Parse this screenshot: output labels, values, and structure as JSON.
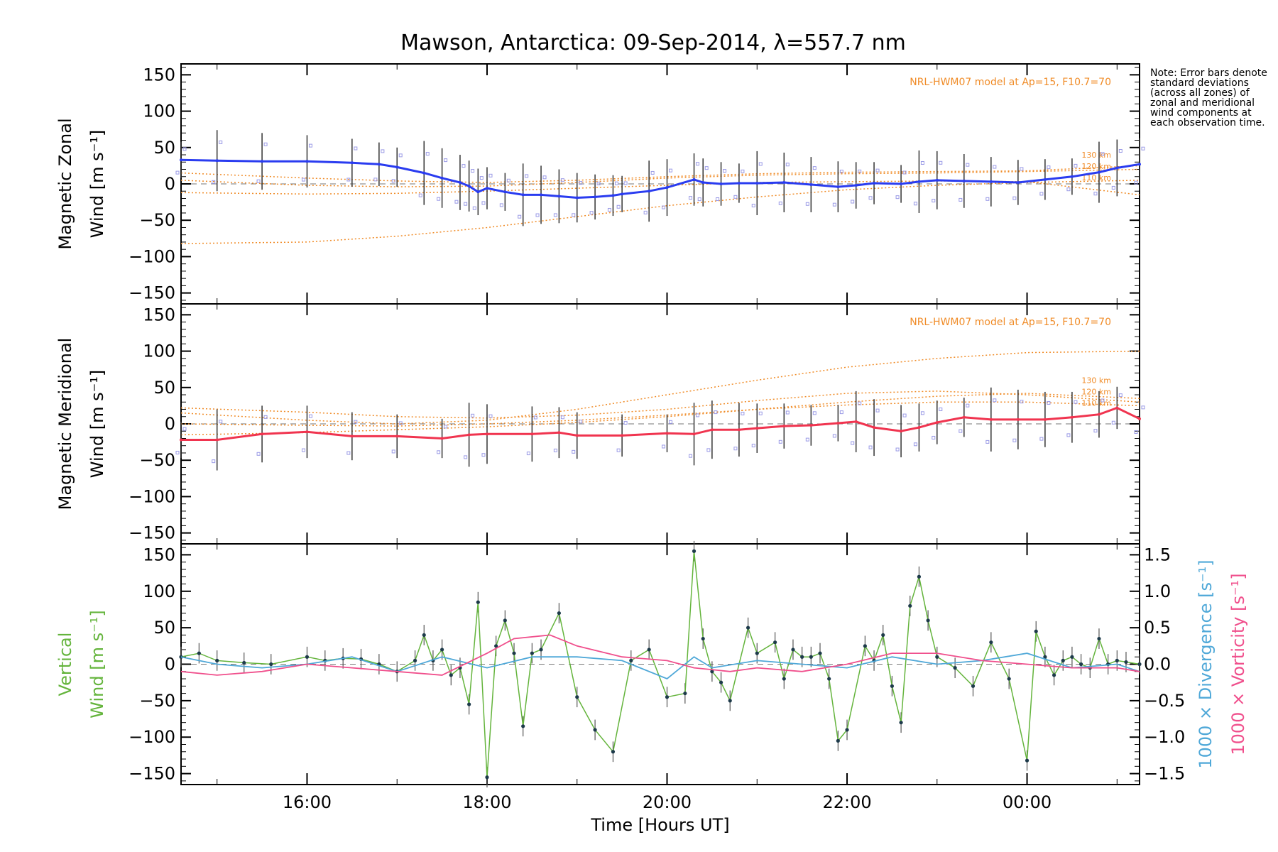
{
  "note": "Note: Error bars denote standard deviations (across all zones) of zonal and meridional wind components at each observation time.",
  "colors": {
    "zonal": "#2a3cf0",
    "meridional": "#f0344f",
    "vertical": "#64b43c",
    "divergence": "#4fa8d8",
    "vorticity": "#f04f8c",
    "model": "#f08c28",
    "zone_points": "#9a9ae6"
  },
  "chart_data": {
    "type": "line",
    "title": "Mawson, Antarctica: 09-Sep-2014, λ=557.7 nm",
    "xlabel": "Time [Hours UT]",
    "x_ticks": [
      "16:00",
      "18:00",
      "20:00",
      "22:00",
      "00:00"
    ],
    "x_tick_hours": [
      16,
      18,
      20,
      22,
      24
    ],
    "xlim_hours": [
      14.6,
      25.25
    ],
    "panels": [
      {
        "name": "zonal",
        "ylabel_top": "Magnetic Zonal",
        "ylabel_bottom": "Wind [m s⁻¹]",
        "ylim": [
          -165,
          165
        ],
        "y_ticks": [
          "150",
          "100",
          "50",
          "0",
          "−50",
          "−100",
          "−150"
        ],
        "model_label": "NRL-HWM07 model at Ap=15, F10.7=70",
        "model_altitude_labels": [
          "130 km",
          "120 km",
          "110 km"
        ],
        "series": [
          {
            "name": "zonal",
            "x": [
              14.6,
              15.0,
              15.5,
              16.0,
              16.5,
              16.8,
              17.0,
              17.3,
              17.5,
              17.7,
              17.8,
              17.9,
              18.0,
              18.2,
              18.4,
              18.6,
              18.8,
              19.0,
              19.2,
              19.4,
              19.5,
              19.8,
              20.0,
              20.3,
              20.4,
              20.6,
              20.8,
              21.0,
              21.3,
              21.6,
              21.9,
              22.1,
              22.3,
              22.6,
              22.8,
              23.0,
              23.3,
              23.6,
              23.9,
              24.2,
              24.5,
              24.8,
              25.0,
              25.25
            ],
            "y": [
              33,
              32,
              31,
              31,
              29,
              27,
              23,
              15,
              8,
              2,
              -3,
              -11,
              -6,
              -11,
              -15,
              -15,
              -17,
              -19,
              -18,
              -16,
              -14,
              -10,
              -5,
              6,
              2,
              0,
              1,
              1,
              2,
              -1,
              -4,
              -2,
              1,
              0,
              3,
              5,
              4,
              3,
              2,
              6,
              10,
              16,
              22,
              27
            ]
          }
        ],
        "model": [
          {
            "name": "model 1",
            "x": [
              14.6,
              16,
              17,
              18,
              19,
              20,
              21,
              22,
              23,
              24,
              25.25
            ],
            "y": [
              -82,
              -80,
              -72,
              -60,
              -45,
              -30,
              -18,
              -8,
              -2,
              2,
              5
            ]
          },
          {
            "name": "model 2",
            "x": [
              14.6,
              16,
              17,
              18,
              19,
              20,
              21,
              22,
              23,
              24,
              25.25
            ],
            "y": [
              -12,
              -14,
              -13,
              -10,
              -6,
              -2,
              2,
              3,
              4,
              3,
              -15
            ]
          },
          {
            "name": "model 3",
            "x": [
              14.6,
              16,
              17,
              18,
              19,
              20,
              21,
              22,
              23,
              24,
              25.25
            ],
            "y": [
              15,
              8,
              4,
              2,
              5,
              10,
              14,
              16,
              17,
              18,
              25
            ]
          },
          {
            "name": "model 4",
            "x": [
              14.6,
              16,
              17,
              18,
              19,
              20,
              21,
              22,
              23,
              24,
              25.25
            ],
            "y": [
              5,
              -2,
              -4,
              -3,
              2,
              8,
              12,
              14,
              15,
              17,
              20
            ]
          }
        ]
      },
      {
        "name": "meridional",
        "ylabel_top": "Magnetic Meridional",
        "ylabel_bottom": "Wind [m s⁻¹]",
        "ylim": [
          -165,
          165
        ],
        "y_ticks": [
          "150",
          "100",
          "50",
          "0",
          "−50",
          "−100",
          "−150"
        ],
        "model_label": "NRL-HWM07 model at Ap=15, F10.7=70",
        "model_altitude_labels": [
          "130 km",
          "120 km",
          "110 km"
        ],
        "series": [
          {
            "name": "meridional",
            "x": [
              14.6,
              15.0,
              15.5,
              16.0,
              16.5,
              17.0,
              17.5,
              17.8,
              18.0,
              18.5,
              18.8,
              19.0,
              19.5,
              20.0,
              20.3,
              20.5,
              20.8,
              21.0,
              21.3,
              21.6,
              21.9,
              22.1,
              22.3,
              22.6,
              22.8,
              23.0,
              23.3,
              23.6,
              23.9,
              24.2,
              24.5,
              24.8,
              25.0,
              25.25
            ],
            "y": [
              -22,
              -22,
              -14,
              -11,
              -17,
              -17,
              -20,
              -15,
              -14,
              -14,
              -12,
              -16,
              -16,
              -13,
              -14,
              -8,
              -8,
              -6,
              -3,
              -2,
              1,
              3,
              -5,
              -10,
              -5,
              2,
              9,
              6,
              6,
              6,
              9,
              13,
              22,
              7
            ]
          }
        ],
        "model": [
          {
            "name": "model 1",
            "x": [
              14.6,
              16,
              17,
              18,
              19,
              20,
              21,
              22,
              23,
              24,
              25.25
            ],
            "y": [
              15,
              5,
              0,
              5,
              20,
              40,
              60,
              78,
              90,
              98,
              100
            ]
          },
          {
            "name": "model 2",
            "x": [
              14.6,
              16,
              17,
              18,
              19,
              20,
              21,
              22,
              23,
              24,
              25.25
            ],
            "y": [
              22,
              16,
              10,
              8,
              12,
              20,
              32,
              42,
              45,
              40,
              30
            ]
          },
          {
            "name": "model 3",
            "x": [
              14.6,
              16,
              17,
              18,
              19,
              20,
              21,
              22,
              23,
              24,
              25.25
            ],
            "y": [
              -15,
              -12,
              -8,
              -4,
              2,
              10,
              20,
              30,
              38,
              42,
              35
            ]
          },
          {
            "name": "model 4",
            "x": [
              14.6,
              16,
              17,
              18,
              19,
              20,
              21,
              22,
              23,
              24,
              25.25
            ],
            "y": [
              0,
              -2,
              -3,
              0,
              5,
              12,
              20,
              26,
              30,
              30,
              25
            ]
          }
        ]
      },
      {
        "name": "vertical",
        "ylabel_top": "Vertical",
        "ylabel_bottom": "Wind [m s⁻¹]",
        "ylabel_right_1": "1000 × Divergence [s⁻¹]",
        "ylabel_right_2": "1000 × Vorticity [s⁻¹]",
        "ylim": [
          -165,
          165
        ],
        "y_ticks": [
          "150",
          "100",
          "50",
          "0",
          "−50",
          "−100",
          "−150"
        ],
        "y2lim": [
          -1.65,
          1.65
        ],
        "y2_ticks": [
          "1.5",
          "1.0",
          "0.5",
          "0.0",
          "−0.5",
          "−1.0",
          "−1.5"
        ],
        "series": [
          {
            "name": "vertical",
            "x": [
              14.6,
              14.8,
              15.0,
              15.3,
              15.6,
              16.0,
              16.2,
              16.4,
              16.6,
              16.8,
              17.0,
              17.2,
              17.3,
              17.4,
              17.5,
              17.6,
              17.7,
              17.8,
              17.9,
              18.0,
              18.1,
              18.2,
              18.3,
              18.4,
              18.5,
              18.6,
              18.8,
              19.0,
              19.2,
              19.4,
              19.6,
              19.8,
              20.0,
              20.2,
              20.3,
              20.4,
              20.5,
              20.6,
              20.7,
              20.9,
              21.0,
              21.2,
              21.3,
              21.4,
              21.5,
              21.6,
              21.7,
              21.8,
              21.9,
              22.0,
              22.2,
              22.3,
              22.4,
              22.5,
              22.6,
              22.7,
              22.8,
              22.9,
              23.0,
              23.2,
              23.4,
              23.6,
              23.8,
              24.0,
              24.1,
              24.2,
              24.3,
              24.4,
              24.5,
              24.6,
              24.7,
              24.8,
              24.9,
              25.0,
              25.1,
              25.25
            ],
            "y": [
              10,
              15,
              5,
              2,
              0,
              10,
              5,
              8,
              7,
              0,
              -10,
              5,
              40,
              5,
              20,
              -15,
              -5,
              -55,
              85,
              -155,
              25,
              60,
              15,
              -85,
              15,
              20,
              70,
              -45,
              -90,
              -120,
              5,
              20,
              -45,
              -40,
              155,
              35,
              -10,
              -25,
              -50,
              50,
              15,
              30,
              -20,
              20,
              10,
              10,
              15,
              -20,
              -105,
              -90,
              25,
              5,
              40,
              -30,
              -80,
              80,
              120,
              60,
              10,
              -5,
              -30,
              30,
              -20,
              -132,
              45,
              10,
              -15,
              5,
              10,
              0,
              -5,
              35,
              0,
              5,
              3,
              0
            ]
          },
          {
            "name": "divergence",
            "axis": "right",
            "x": [
              14.6,
              15.0,
              15.5,
              16.0,
              16.5,
              17.0,
              17.5,
              18.0,
              18.5,
              19.0,
              19.5,
              20.0,
              20.3,
              20.5,
              21.0,
              21.5,
              22.0,
              22.5,
              23.0,
              23.5,
              24.0,
              24.5,
              25.0,
              25.25
            ],
            "y": [
              0.1,
              0.0,
              -0.05,
              0.0,
              0.1,
              -0.1,
              0.1,
              -0.05,
              0.1,
              0.1,
              0.05,
              -0.2,
              0.1,
              -0.05,
              0.05,
              0.0,
              -0.05,
              0.1,
              0.0,
              0.05,
              0.15,
              -0.05,
              0.0,
              -0.1
            ]
          },
          {
            "name": "vorticity",
            "axis": "right",
            "x": [
              14.6,
              15.0,
              15.5,
              16.0,
              16.5,
              17.0,
              17.5,
              18.0,
              18.3,
              18.7,
              19.0,
              19.5,
              20.0,
              20.3,
              20.7,
              21.0,
              21.5,
              22.0,
              22.5,
              23.0,
              23.5,
              24.0,
              24.5,
              25.0,
              25.25
            ],
            "y": [
              -0.1,
              -0.15,
              -0.1,
              0.0,
              -0.05,
              -0.1,
              -0.15,
              0.15,
              0.35,
              0.4,
              0.25,
              0.1,
              0.05,
              -0.05,
              -0.1,
              -0.05,
              -0.1,
              0.0,
              0.15,
              0.15,
              0.05,
              0.0,
              -0.05,
              -0.05,
              -0.1
            ]
          }
        ]
      }
    ]
  }
}
